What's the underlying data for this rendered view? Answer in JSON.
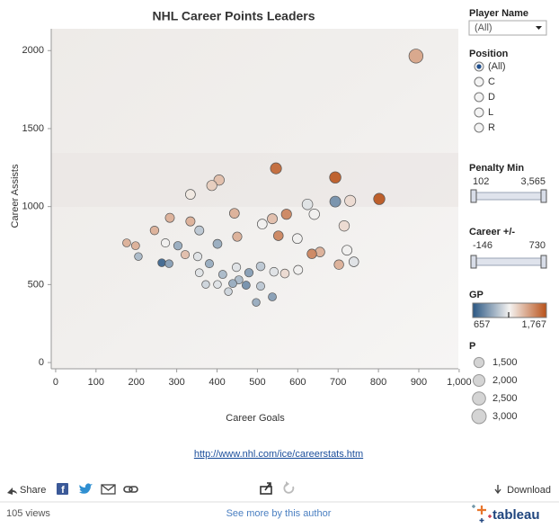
{
  "chart_data": {
    "type": "scatter",
    "title": "NHL Career Points Leaders",
    "x_label": "Career Goals",
    "y_label": "Career Assists",
    "xlim": [
      -11,
      998
    ],
    "ylim": [
      -40,
      2140
    ],
    "xticks": [
      0,
      100,
      200,
      300,
      400,
      500,
      600,
      700,
      800,
      900,
      {
        "value": 1000,
        "label": "1,000"
      }
    ],
    "yticks": [
      0,
      500,
      1000,
      1500,
      2000
    ],
    "x": [
      893,
      546,
      693,
      802,
      405,
      387,
      334,
      730,
      693,
      624,
      537,
      283,
      443,
      572,
      641,
      512,
      334,
      356,
      715,
      450,
      245,
      599,
      176,
      198,
      272,
      401,
      552,
      655,
      635,
      722,
      303,
      352,
      321,
      205,
      263,
      281,
      739,
      702,
      381,
      448,
      508,
      541,
      479,
      356,
      414,
      454,
      401,
      472,
      508,
      568,
      601,
      497,
      537,
      428,
      439,
      372
    ],
    "y": [
      1965,
      1245,
      1187,
      1049,
      1170,
      1135,
      1078,
      1037,
      1032,
      1014,
      922,
      928,
      957,
      951,
      951,
      888,
      905,
      847,
      876,
      807,
      847,
      795,
      767,
      749,
      767,
      761,
      813,
      709,
      697,
      720,
      749,
      680,
      692,
      680,
      640,
      634,
      646,
      628,
      634,
      611,
      617,
      582,
      576,
      576,
      565,
      530,
      501,
      496,
      490,
      571,
      594,
      386,
      421,
      455,
      507,
      501
    ],
    "sizes": [
      2857,
      1791,
      1880,
      1851,
      1575,
      1522,
      1412,
      1767,
      1725,
      1638,
      1459,
      1211,
      1400,
      1523,
      1592,
      1400,
      1239,
      1203,
      1591,
      1257,
      1092,
      1394,
      943,
      947,
      1039,
      1162,
      1365,
      1364,
      1332,
      1442,
      1052,
      1032,
      1013,
      885,
      903,
      915,
      1385,
      1330,
      1015,
      1059,
      1125,
      1123,
      1055,
      932,
      979,
      984,
      902,
      968,
      998,
      1139,
      1195,
      883,
      958,
      883,
      946,
      873
    ],
    "color_values": [
      1487,
      1700,
      1750,
      1767,
      1400,
      1350,
      1250,
      1300,
      850,
      1150,
      1400,
      1450,
      1450,
      1600,
      1200,
      1200,
      1450,
      1050,
      1300,
      1450,
      1450,
      1200,
      1450,
      1450,
      1200,
      950,
      1600,
      1450,
      1600,
      1200,
      950,
      1150,
      1400,
      1000,
      700,
      900,
      1150,
      1450,
      950,
      1150,
      1050,
      1150,
      900,
      1150,
      1000,
      1000,
      1150,
      850,
      1050,
      1300,
      1200,
      950,
      900,
      1100,
      950,
      1100
    ],
    "colors": [
      "#2a5783",
      "#f5f3f1",
      "#b9521a"
    ],
    "color_legend": {
      "title": "GP",
      "min": 657,
      "max": {
        "value": 1767,
        "label": "1,767"
      }
    },
    "size_legend": {
      "title": "P",
      "values": [
        {
          "value": 1500,
          "label": "1,500"
        },
        {
          "value": 2000,
          "label": "2,000"
        },
        {
          "value": 2500,
          "label": "2,500"
        },
        {
          "value": 3000,
          "label": "3,000"
        }
      ]
    }
  },
  "filters": {
    "player_name": {
      "label": "Player Name",
      "value": "(All)"
    },
    "position": {
      "label": "Position",
      "options": [
        "(All)",
        "C",
        "D",
        "L",
        "R"
      ]
    },
    "penalty_min": {
      "label": "Penalty Min",
      "min": 102,
      "max": {
        "value": 3565,
        "label": "3,565"
      }
    },
    "career_plus_minus": {
      "label": "Career +/-",
      "min": -146,
      "max": 730
    }
  },
  "source_link": "http://www.nhl.com/ice/careerstats.htm",
  "toolbar": {
    "share": "Share",
    "download": "Download"
  },
  "footer": {
    "views": "105 views",
    "author_link": "See more by this author",
    "brand": "tableau"
  }
}
